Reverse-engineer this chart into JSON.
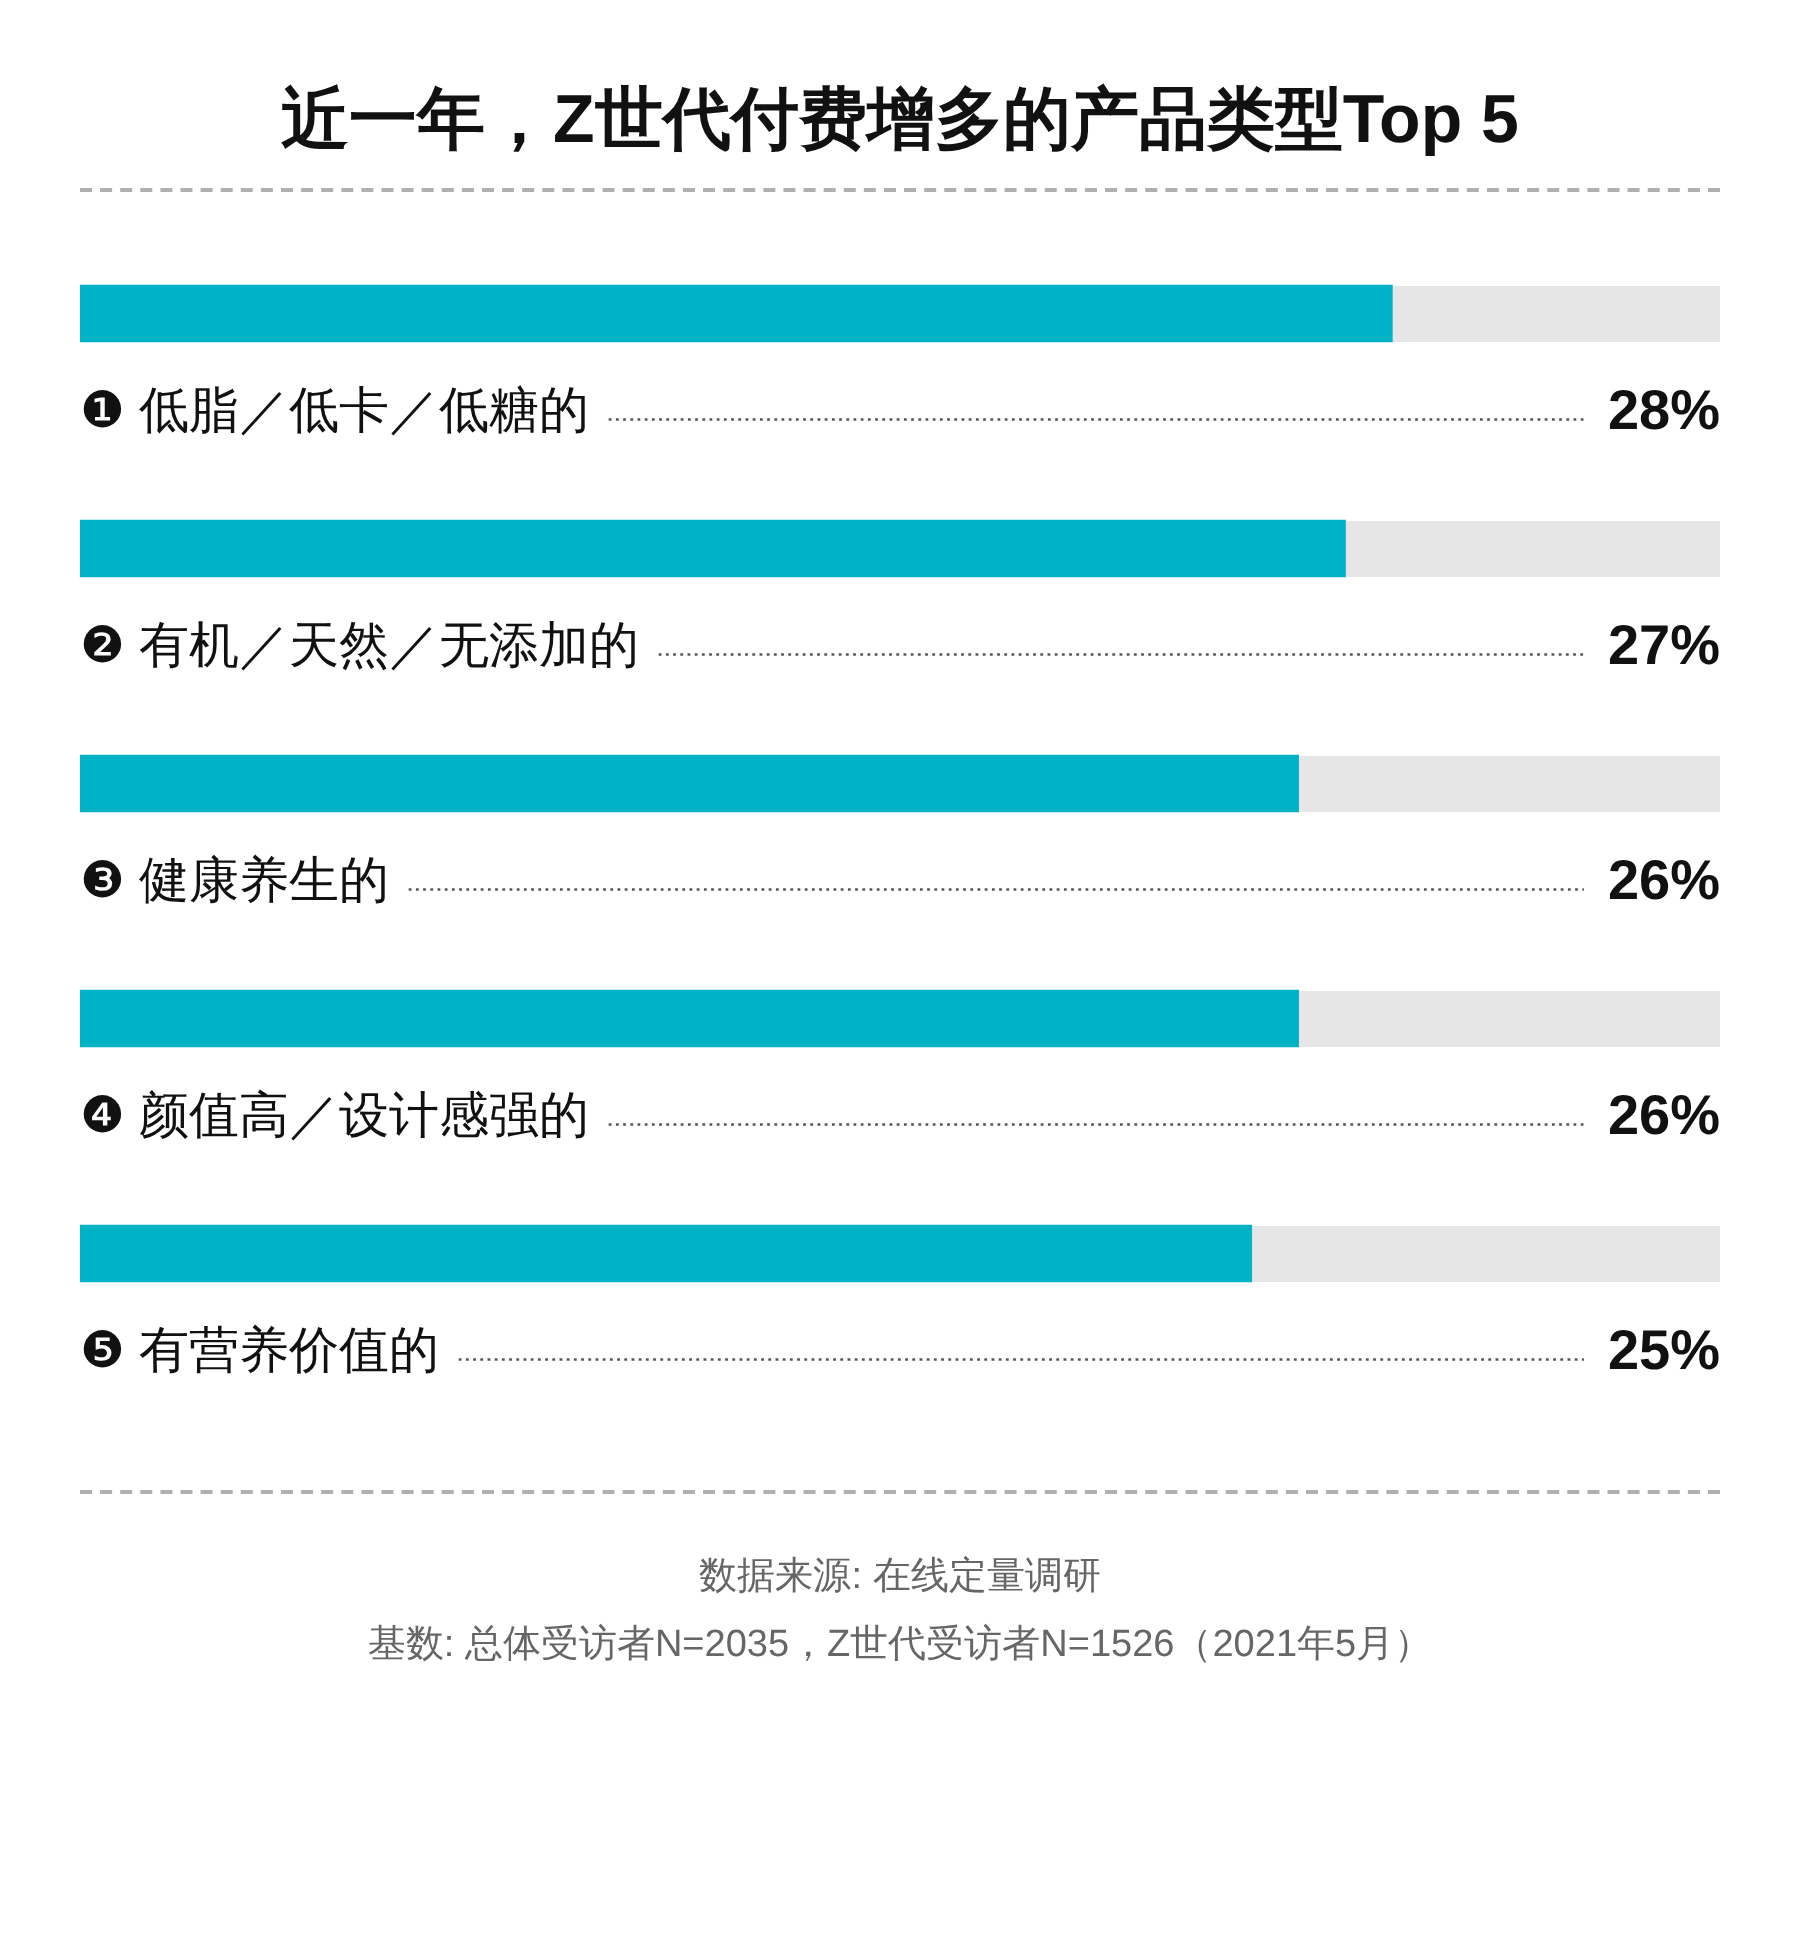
{
  "chart_data": {
    "type": "bar",
    "orientation": "horizontal",
    "title": "近一年，Z世代付费增多的产品类型Top 5",
    "categories": [
      "❶ 低脂／低卡／低糖的",
      "❷ 有机／天然／无添加的",
      "❸ 健康养生的",
      "❹ 颜值高／设计感强的",
      "❺ 有营养价值的"
    ],
    "values": [
      28,
      27,
      26,
      26,
      25
    ],
    "value_labels": [
      "28%",
      "27%",
      "26%",
      "26%",
      "25%"
    ],
    "color": "#00b2c6",
    "xlim": [
      0,
      35
    ],
    "tick_labels": false,
    "grid": "y",
    "annotations": [
      "数据来源: 在线定量调研",
      "基数: 总体受访者N=2035，Z世代受访者N=1526（2021年5月）"
    ]
  }
}
